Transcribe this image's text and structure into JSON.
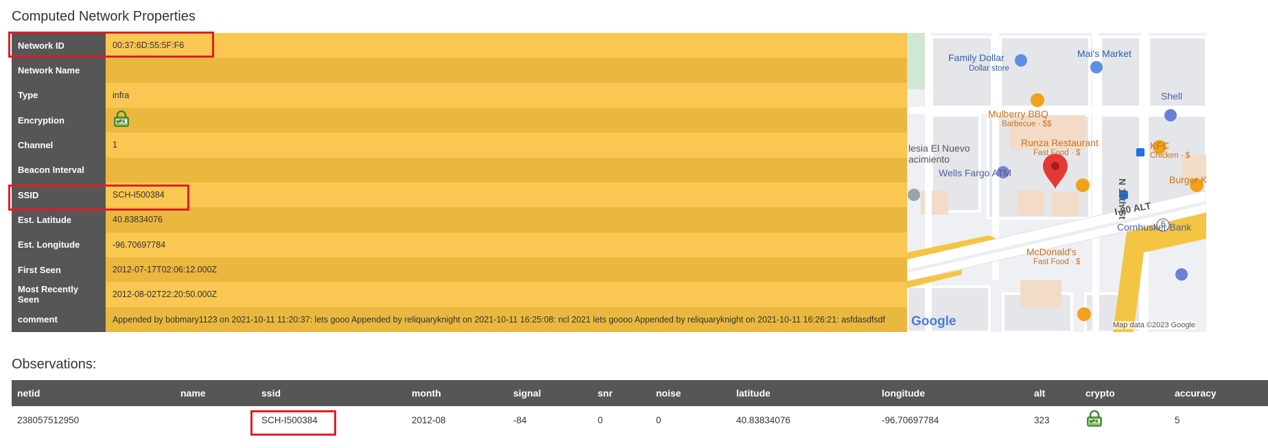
{
  "sections": {
    "properties_title": "Computed Network Properties",
    "observations_title": "Observations:"
  },
  "properties": [
    {
      "key": "Network ID",
      "value": "00:37:6D:55:5F:F6"
    },
    {
      "key": "Network Name",
      "value": ""
    },
    {
      "key": "Type",
      "value": "infra"
    },
    {
      "key": "Encryption",
      "value": ""
    },
    {
      "key": "Channel",
      "value": "1"
    },
    {
      "key": "Beacon Interval",
      "value": ""
    },
    {
      "key": "SSID",
      "value": "SCH-I500384"
    },
    {
      "key": "Est. Latitude",
      "value": "40.83834076"
    },
    {
      "key": "Est. Longitude",
      "value": "-96.70697784"
    },
    {
      "key": "First Seen",
      "value": "2012-07-17T02:06:12.000Z"
    },
    {
      "key": "Most Recently Seen",
      "value": "2012-08-02T22:20:50.000Z"
    },
    {
      "key": "comment",
      "value": "Appended by bobmary1123 on 2021-10-11 11:20:37: lets gooo Appended by reliquaryknight on 2021-10-11 16:25:08: ncl 2021 lets goooo Appended by reliquaryknight on 2021-10-11 16:26:21: asfdasdfsdf"
    }
  ],
  "encryption_icon": "wpa-lock-icon",
  "map": {
    "labels": {
      "family_dollar": "Family Dollar",
      "dollar_store": "Dollar store",
      "mais_market": "Mai's Market",
      "shell": "Shell",
      "mulberry": "Mulberry BBQ",
      "barbecue": "Barbecue · $$",
      "iglesia": "lesia El Nuevo",
      "nacimiento": "acimiento",
      "runza": "Runza Restaurant",
      "fast_food_runza": "Fast Food · $",
      "kfc": "KFC",
      "chicken": "Chicken · $",
      "wells_fargo": "Wells Fargo ATM",
      "burger_king": "Burger Kin",
      "n11th": "N 11th St",
      "i80": "I-80 ALT",
      "route6": "6",
      "cornhusker": "Cornhusker Bank",
      "mcdonalds": "McDonald's",
      "fast_food_mcd": "Fast Food · $",
      "google": "Google",
      "attribution": "Map data ©2023 Google"
    },
    "colors": {
      "road": "#ffffff",
      "block": "#e4e6ea",
      "building": "#f2dcc8",
      "highway": "#f4c542",
      "marker": "#e53935"
    }
  },
  "observations": {
    "columns": [
      "netid",
      "name",
      "ssid",
      "month",
      "signal",
      "snr",
      "noise",
      "latitude",
      "longitude",
      "alt",
      "crypto",
      "accuracy"
    ],
    "rows": [
      [
        "238057512950",
        "",
        "SCH-I500384",
        "2012-08",
        "-84",
        "0",
        "0",
        "40.83834076",
        "-96.70697784",
        "323",
        "",
        "5"
      ]
    ]
  },
  "colors": {
    "header_bg": "#565656",
    "row_light": "#f9c752",
    "row_dark": "#ebb83f",
    "highlight": "#e21c24"
  }
}
